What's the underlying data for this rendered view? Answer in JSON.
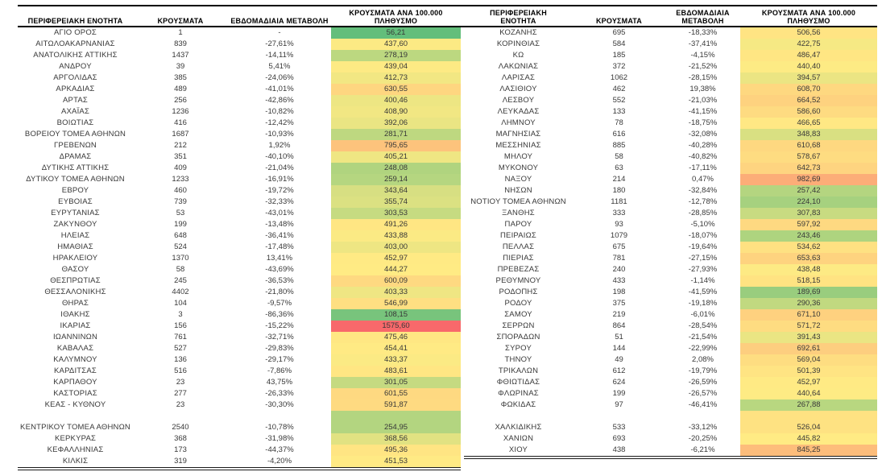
{
  "header": {
    "columns": [
      "ΠΕΡΙΦΕΡΕΙΑΚΗ ΕΝΟΤΗΤΑ",
      "ΚΡΟΥΣΜΑΤΑ",
      "ΕΒΔΟΜΑΔΙΑΙΑ ΜΕΤΑΒΟΛΗ",
      "ΚΡΟΥΣΜΑΤΑ ΑΝΑ 100.000 ΠΛΗΘΥΣΜΟ"
    ]
  },
  "color_scale": {
    "min_color": "#63BE7B",
    "mid_color": "#FFEB84",
    "max_color": "#F8696B"
  },
  "tables": [
    {
      "name": "left",
      "rows": [
        [
          "ΑΓΙΟ ΟΡΟΣ",
          "1",
          "-",
          "56,21"
        ],
        [
          "ΑΙΤΩΛΟΑΚΑΡΝΑΝΙΑΣ",
          "839",
          "-27,61%",
          "437,60"
        ],
        [
          "ΑΝΑΤΟΛΙΚΗΣ ΑΤΤΙΚΗΣ",
          "1437",
          "-14,11%",
          "278,19"
        ],
        [
          "ΑΝΔΡΟΥ",
          "39",
          "5,41%",
          "439,04"
        ],
        [
          "ΑΡΓΟΛΙΔΑΣ",
          "385",
          "-24,06%",
          "412,73"
        ],
        [
          "ΑΡΚΑΔΙΑΣ",
          "489",
          "-41,01%",
          "630,55"
        ],
        [
          "ΑΡΤΑΣ",
          "256",
          "-42,86%",
          "400,46"
        ],
        [
          "ΑΧΑΪΑΣ",
          "1236",
          "-10,82%",
          "408,90"
        ],
        [
          "ΒΟΙΩΤΙΑΣ",
          "416",
          "-12,42%",
          "392,06"
        ],
        [
          "ΒΟΡΕΙΟΥ ΤΟΜΕΑ ΑΘΗΝΩΝ",
          "1687",
          "-10,93%",
          "281,71"
        ],
        [
          "ΓΡΕΒΕΝΩΝ",
          "212",
          "1,92%",
          "795,65"
        ],
        [
          "ΔΡΑΜΑΣ",
          "351",
          "-40,10%",
          "405,21"
        ],
        [
          "ΔΥΤΙΚΗΣ ΑΤΤΙΚΗΣ",
          "409",
          "-21,04%",
          "248,08"
        ],
        [
          "ΔΥΤΙΚΟΥ ΤΟΜΕΑ ΑΘΗΝΩΝ",
          "1233",
          "-16,91%",
          "259,14"
        ],
        [
          "ΕΒΡΟΥ",
          "460",
          "-19,72%",
          "343,64"
        ],
        [
          "ΕΥΒΟΙΑΣ",
          "739",
          "-32,33%",
          "355,74"
        ],
        [
          "ΕΥΡΥΤΑΝΙΑΣ",
          "53",
          "-43,01%",
          "303,53"
        ],
        [
          "ΖΑΚΥΝΘΟΥ",
          "199",
          "-13,48%",
          "491,26"
        ],
        [
          "ΗΛΕΙΑΣ",
          "648",
          "-36,41%",
          "433,88"
        ],
        [
          "ΗΜΑΘΙΑΣ",
          "524",
          "-17,48%",
          "403,00"
        ],
        [
          "ΗΡΑΚΛΕΙΟΥ",
          "1370",
          "13,41%",
          "452,97"
        ],
        [
          "ΘΑΣΟΥ",
          "58",
          "-43,69%",
          "444,27"
        ],
        [
          "ΘΕΣΠΡΩΤΙΑΣ",
          "245",
          "-36,53%",
          "600,09"
        ],
        [
          "ΘΕΣΣΑΛΟΝΙΚΗΣ",
          "4402",
          "-21,80%",
          "403,33"
        ],
        [
          "ΘΗΡΑΣ",
          "104",
          "-9,57%",
          "546,99"
        ],
        [
          "ΙΘΑΚΗΣ",
          "3",
          "-86,36%",
          "108,15"
        ],
        [
          "ΙΚΑΡΙΑΣ",
          "156",
          "-15,22%",
          "1575,60"
        ],
        [
          "ΙΩΑΝΝΙΝΩΝ",
          "761",
          "-32,71%",
          "475,46"
        ],
        [
          "ΚΑΒΑΛΑΣ",
          "527",
          "-29,83%",
          "454,41"
        ],
        [
          "ΚΑΛΥΜΝΟΥ",
          "136",
          "-29,17%",
          "433,37"
        ],
        [
          "ΚΑΡΔΙΤΣΑΣ",
          "516",
          "-7,86%",
          "483,61"
        ],
        [
          "ΚΑΡΠΑΘΟΥ",
          "23",
          "43,75%",
          "301,05"
        ],
        [
          "ΚΑΣΤΟΡΙΑΣ",
          "277",
          "-26,33%",
          "601,55"
        ],
        [
          "ΚΕΑΣ - ΚΥΘΝΟΥ",
          "23",
          "-30,30%",
          "591,87"
        ],
        null,
        [
          "ΚΕΝΤΡΙΚΟΥ ΤΟΜΕΑ ΑΘΗΝΩΝ",
          "2540",
          "-10,78%",
          "254,95"
        ],
        [
          "ΚΕΡΚΥΡΑΣ",
          "368",
          "-31,98%",
          "368,56"
        ],
        [
          "ΚΕΦΑΛΛΗΝΙΑΣ",
          "173",
          "-44,37%",
          "495,36"
        ],
        [
          "ΚΙΛΚΙΣ",
          "319",
          "-4,20%",
          "451,53"
        ]
      ]
    },
    {
      "name": "right",
      "rows": [
        [
          "ΚΟΖΑΝΗΣ",
          "695",
          "-18,33%",
          "506,56"
        ],
        [
          "ΚΟΡΙΝΘΙΑΣ",
          "584",
          "-37,41%",
          "422,75"
        ],
        [
          "ΚΩ",
          "185",
          "-4,15%",
          "486,47"
        ],
        [
          "ΛΑΚΩΝΙΑΣ",
          "372",
          "-21,52%",
          "440,40"
        ],
        [
          "ΛΑΡΙΣΑΣ",
          "1062",
          "-28,15%",
          "394,57"
        ],
        [
          "ΛΑΣΙΘΙΟΥ",
          "462",
          "19,38%",
          "608,70"
        ],
        [
          "ΛΕΣΒΟΥ",
          "552",
          "-21,03%",
          "664,52"
        ],
        [
          "ΛΕΥΚΑΔΑΣ",
          "133",
          "-41,15%",
          "586,60"
        ],
        [
          "ΛΗΜΝΟΥ",
          "78",
          "-18,75%",
          "466,65"
        ],
        [
          "ΜΑΓΝΗΣΙΑΣ",
          "616",
          "-32,08%",
          "348,83"
        ],
        [
          "ΜΕΣΣΗΝΙΑΣ",
          "885",
          "-40,28%",
          "610,68"
        ],
        [
          "ΜΗΛΟΥ",
          "58",
          "-40,82%",
          "578,67"
        ],
        [
          "ΜΥΚΟΝΟΥ",
          "63",
          "-17,11%",
          "642,73"
        ],
        [
          "ΝΑΞΟΥ",
          "214",
          "0,47%",
          "982,69"
        ],
        [
          "ΝΗΣΩΝ",
          "180",
          "-32,84%",
          "257,42"
        ],
        [
          "ΝΟΤΙΟΥ ΤΟΜΕΑ ΑΘΗΝΩΝ",
          "1181",
          "-12,78%",
          "224,10"
        ],
        [
          "ΞΑΝΘΗΣ",
          "333",
          "-28,85%",
          "307,83"
        ],
        [
          "ΠΑΡΟΥ",
          "93",
          "-5,10%",
          "597,92"
        ],
        [
          "ΠΕΙΡΑΙΩΣ",
          "1079",
          "-18,07%",
          "243,46"
        ],
        [
          "ΠΕΛΛΑΣ",
          "675",
          "-19,64%",
          "534,62"
        ],
        [
          "ΠΙΕΡΙΑΣ",
          "781",
          "-27,15%",
          "653,63"
        ],
        [
          "ΠΡΕΒΕΖΑΣ",
          "240",
          "-27,93%",
          "438,48"
        ],
        [
          "ΡΕΘΥΜΝΟΥ",
          "433",
          "-1,14%",
          "518,15"
        ],
        [
          "ΡΟΔΟΠΗΣ",
          "198",
          "-41,59%",
          "189,69"
        ],
        [
          "ΡΟΔΟΥ",
          "375",
          "-19,18%",
          "290,36"
        ],
        [
          "ΣΑΜΟΥ",
          "219",
          "-6,01%",
          "671,10"
        ],
        [
          "ΣΕΡΡΩΝ",
          "864",
          "-28,54%",
          "571,72"
        ],
        [
          "ΣΠΟΡΑΔΩΝ",
          "51",
          "-21,54%",
          "391,43"
        ],
        [
          "ΣΥΡΟΥ",
          "144",
          "-22,99%",
          "692,61"
        ],
        [
          "ΤΗΝΟΥ",
          "49",
          "2,08%",
          "569,04"
        ],
        [
          "ΤΡΙΚΑΛΩΝ",
          "612",
          "-19,79%",
          "501,39"
        ],
        [
          "ΦΘΙΩΤΙΔΑΣ",
          "624",
          "-26,59%",
          "452,97"
        ],
        [
          "ΦΛΩΡΙΝΑΣ",
          "199",
          "-26,57%",
          "440,64"
        ],
        [
          "ΦΩΚΙΔΑΣ",
          "97",
          "-46,41%",
          "267,88"
        ],
        null,
        [
          "ΧΑΛΚΙΔΙΚΗΣ",
          "533",
          "-33,12%",
          "526,04"
        ],
        [
          "ΧΑΝΙΩΝ",
          "693",
          "-20,25%",
          "445,82"
        ],
        [
          "ΧΙΟΥ",
          "438",
          "-6,21%",
          "845,25"
        ]
      ]
    }
  ]
}
